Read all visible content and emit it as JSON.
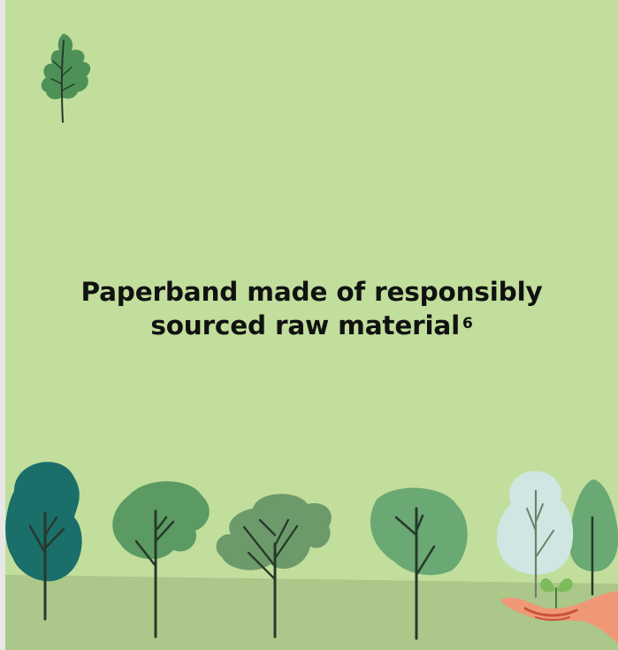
{
  "headline": {
    "line1": "Paperband made of responsibly",
    "line2": "sourced raw material",
    "footnote": "6"
  },
  "colors": {
    "background": "#c1de9c",
    "ground": "#abc78a",
    "leaf": "#4e9157",
    "tree_dark_teal": "#1a6f6a",
    "tree_green": "#5c9a63",
    "tree_sage": "#6d9a6b",
    "tree_mint": "#6aa874",
    "tree_pale": "#cfe6e2",
    "hand": "#ef9878",
    "trunk": "#27392b",
    "text": "#111111"
  },
  "icons": {
    "leaf": "oak-leaf-icon",
    "hand": "hand-holding-sapling-icon"
  }
}
